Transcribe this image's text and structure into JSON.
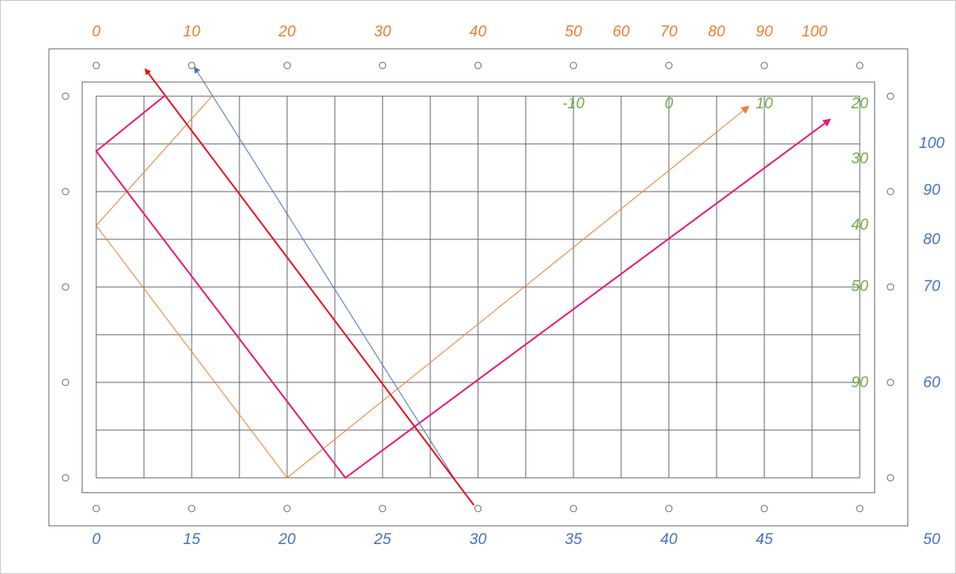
{
  "top_labels": [
    "0",
    "10",
    "20",
    "30",
    "40",
    "50",
    "60",
    "70",
    "80",
    "90",
    "100"
  ],
  "bottom_labels": [
    "0",
    "15",
    "20",
    "25",
    "30",
    "35",
    "40",
    "45",
    "50"
  ],
  "right_labels": [
    "100",
    "90",
    "80",
    "70",
    "60"
  ],
  "green_labels": [
    "-10",
    "0",
    "10",
    "20",
    "30",
    "40",
    "50",
    "90"
  ]
}
